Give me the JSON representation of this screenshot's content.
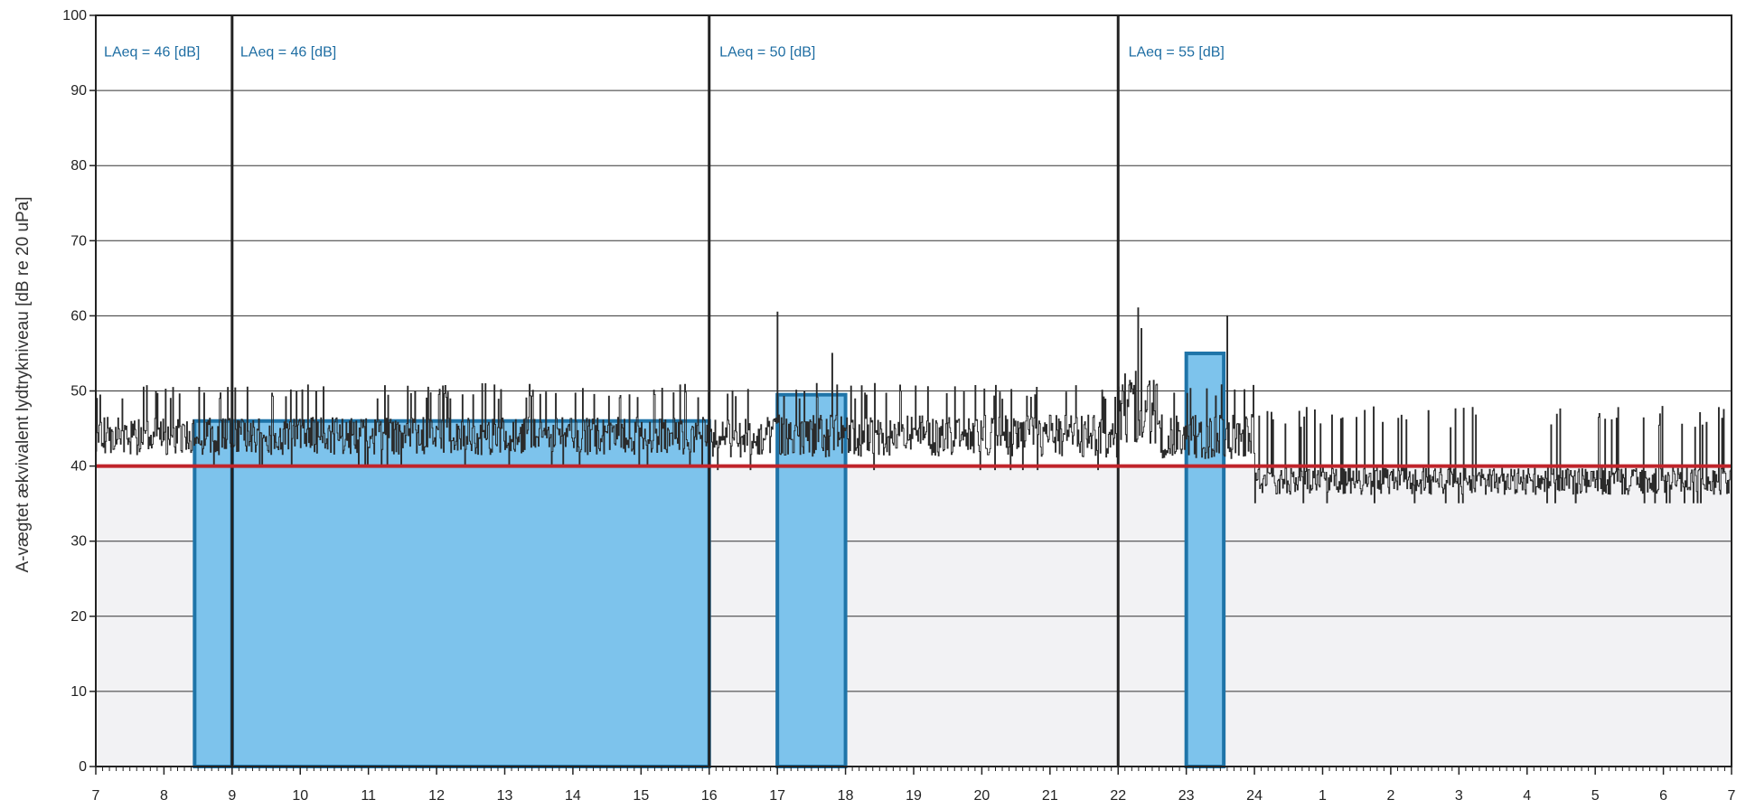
{
  "chart_data": {
    "type": "area",
    "title": "",
    "xlabel": "",
    "ylabel": "A-vægtet ækvivalent lydtrykniveau [dB re 20 uPa]",
    "ylim": [
      0,
      100
    ],
    "xlim": [
      0,
      24
    ],
    "grid": true,
    "x_tick_labels": [
      "7",
      "8",
      "9",
      "10",
      "11",
      "12",
      "13",
      "14",
      "15",
      "16",
      "17",
      "18",
      "19",
      "20",
      "21",
      "22",
      "23",
      "24",
      "1",
      "2",
      "3",
      "4",
      "5",
      "6",
      "7"
    ],
    "y_tick_labels": [
      "0",
      "10",
      "20",
      "30",
      "40",
      "50",
      "60",
      "70",
      "80",
      "90",
      "100"
    ],
    "y_ticks": [
      0,
      10,
      20,
      30,
      40,
      50,
      60,
      70,
      80,
      90,
      100
    ],
    "period_dividers_x": [
      2,
      9,
      15
    ],
    "reference_line": {
      "y": 40,
      "color": "#c0242b"
    },
    "laeq_bars": [
      {
        "x0": 1.45,
        "x1": 2.0,
        "value": 46
      },
      {
        "x0": 2.0,
        "x1": 9.0,
        "value": 46
      },
      {
        "x0": 10.0,
        "x1": 11.0,
        "value": 49.5
      },
      {
        "x0": 16.0,
        "x1": 16.55,
        "value": 55
      }
    ],
    "annotations": [
      {
        "text": "LAeq = 46 [dB]",
        "x": 0.12
      },
      {
        "text": "LAeq = 46 [dB]",
        "x": 2.12
      },
      {
        "text": "LAeq = 50 [dB]",
        "x": 9.15
      },
      {
        "text": "LAeq = 55 [dB]",
        "x": 15.15
      }
    ],
    "noise_series": {
      "name": "",
      "segments": [
        {
          "x0": 0.0,
          "x1": 9.0,
          "base": 44,
          "amp": 2.5,
          "spike": 51
        },
        {
          "x0": 9.0,
          "x1": 15.0,
          "base": 44,
          "amp": 2.8,
          "spike": 51
        },
        {
          "x0": 15.0,
          "x1": 15.6,
          "base": 48,
          "amp": 5.0,
          "spike": 62
        },
        {
          "x0": 15.6,
          "x1": 17.0,
          "base": 44,
          "amp": 3.0,
          "spike": 51
        },
        {
          "x0": 17.0,
          "x1": 24.0,
          "base": 38,
          "amp": 1.8,
          "spike": 48
        }
      ],
      "peaks": [
        {
          "x": 10.0,
          "y": 60.5
        },
        {
          "x": 10.8,
          "y": 55
        },
        {
          "x": 16.6,
          "y": 60
        }
      ]
    },
    "colors": {
      "fill": "#7dc3ec",
      "bar_outline": "#1f74a8",
      "noise": "#2a2a2a",
      "grid": "#333333",
      "annotation": "#1f6ea3",
      "background_shade": "#f2f2f4"
    }
  }
}
